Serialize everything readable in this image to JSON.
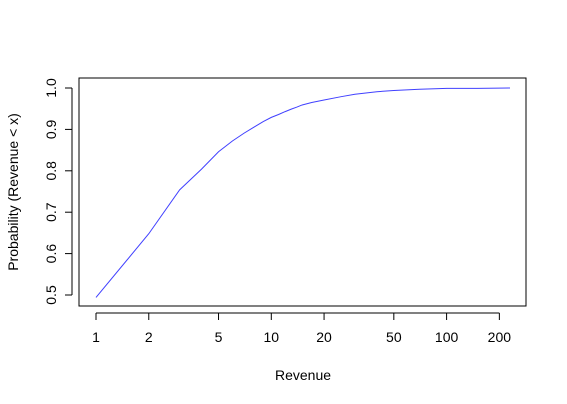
{
  "chart_data": {
    "type": "line",
    "title": "",
    "xlabel": "Revenue",
    "ylabel": "Probability (Revenue < x)",
    "x_scale": "log",
    "xlim": [
      1,
      230
    ],
    "ylim": [
      0.49,
      1.0
    ],
    "grid": false,
    "x_ticks": [
      1,
      2,
      5,
      10,
      20,
      50,
      100,
      200
    ],
    "x_tick_labels": [
      "1",
      "2",
      "5",
      "10",
      "20",
      "50",
      "100",
      "200"
    ],
    "y_ticks": [
      0.5,
      0.6,
      0.7,
      0.8,
      0.9,
      1.0
    ],
    "y_tick_labels": [
      "0.5",
      "0.6",
      "0.7",
      "0.8",
      "0.9",
      "1.0"
    ],
    "series": [
      {
        "color": "#4040ff",
        "x": [
          1,
          2,
          3,
          4,
          5,
          6,
          7,
          8,
          9,
          10,
          11,
          12,
          13,
          14,
          15,
          17,
          20,
          25,
          30,
          40,
          50,
          70,
          100,
          150,
          230
        ],
        "y": [
          0.494,
          0.648,
          0.754,
          0.804,
          0.846,
          0.872,
          0.891,
          0.906,
          0.919,
          0.929,
          0.936,
          0.943,
          0.949,
          0.954,
          0.959,
          0.965,
          0.971,
          0.979,
          0.985,
          0.991,
          0.994,
          0.997,
          0.999,
          0.999,
          1.0
        ]
      }
    ]
  }
}
